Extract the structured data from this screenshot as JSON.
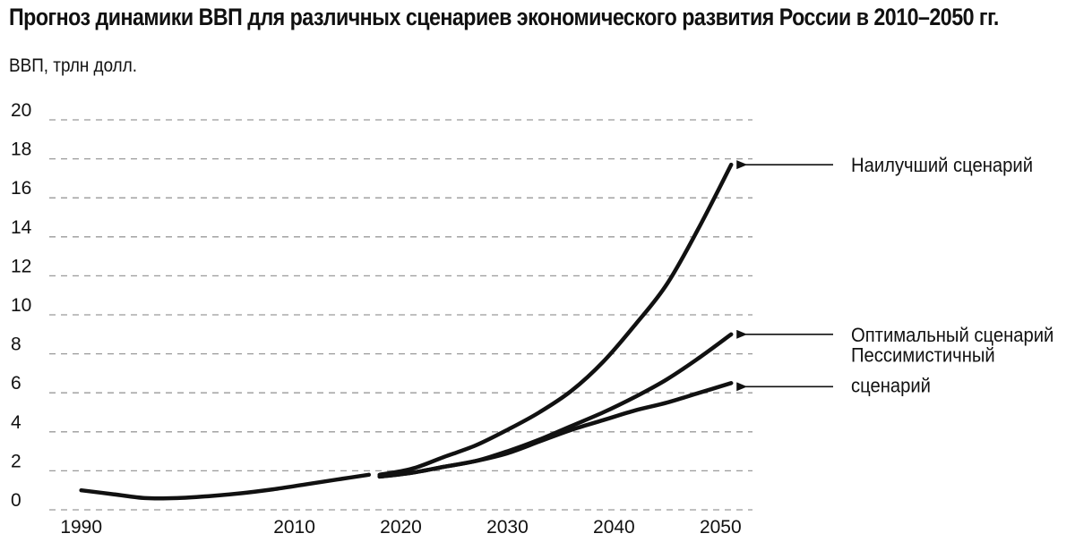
{
  "chart_data": {
    "type": "line",
    "title": "Прогноз динамики ВВП для различных сценариев экономического развития России в 2010–2050 гг.",
    "ylabel": "ВВП, трлн долл.",
    "xlabel": "",
    "xlim": [
      1987,
      2053
    ],
    "ylim": [
      0,
      20
    ],
    "x_ticks": [
      "1990",
      "2010",
      "2020",
      "2030",
      "2040",
      "2050"
    ],
    "y_ticks": [
      "0",
      "2",
      "4",
      "6",
      "8",
      "10",
      "12",
      "14",
      "16",
      "18",
      "20"
    ],
    "grid": "horizontal dashed",
    "historical": {
      "x": [
        1990,
        1993,
        1996,
        1999,
        2002,
        2005,
        2008,
        2011,
        2014,
        2017
      ],
      "y": [
        1.0,
        0.8,
        0.6,
        0.6,
        0.7,
        0.85,
        1.05,
        1.3,
        1.55,
        1.8
      ]
    },
    "series": [
      {
        "name": "Наилучший сценарий",
        "x": [
          2018,
          2021,
          2024,
          2027,
          2030,
          2033,
          2036,
          2039,
          2042,
          2045,
          2048,
          2051
        ],
        "y": [
          1.8,
          2.1,
          2.7,
          3.3,
          4.1,
          5.0,
          6.1,
          7.6,
          9.5,
          11.6,
          14.5,
          17.7
        ]
      },
      {
        "name": "Оптимальный сценарий",
        "x": [
          2018,
          2021,
          2024,
          2027,
          2030,
          2033,
          2036,
          2039,
          2042,
          2045,
          2048,
          2051
        ],
        "y": [
          1.7,
          1.9,
          2.2,
          2.5,
          3.0,
          3.6,
          4.3,
          5.0,
          5.8,
          6.7,
          7.8,
          9.0
        ]
      },
      {
        "name": "Пессимистичный сценарий",
        "label_lines": [
          "Пессимистичный",
          "сценарий"
        ],
        "x": [
          2018,
          2021,
          2024,
          2027,
          2030,
          2033,
          2036,
          2039,
          2042,
          2045,
          2048,
          2051
        ],
        "y": [
          1.7,
          1.9,
          2.2,
          2.5,
          2.9,
          3.5,
          4.1,
          4.6,
          5.1,
          5.5,
          6.0,
          6.5
        ]
      }
    ],
    "annotations": "arrows pointing from labels to line ends"
  }
}
